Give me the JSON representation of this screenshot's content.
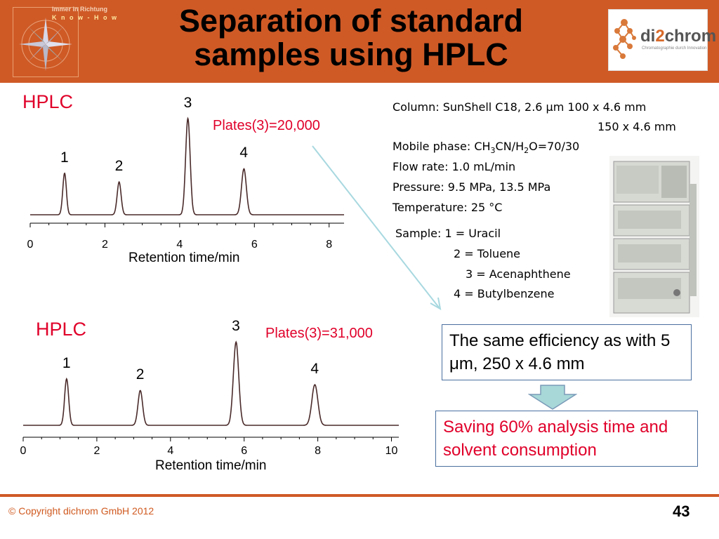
{
  "header": {
    "title_line1": "Separation of standard",
    "title_line2": "samples using HPLC",
    "logo_left_text1": "Immer in Richtung",
    "logo_left_text2": "K n o w - H o w",
    "logo_right_name_a": "di",
    "logo_right_name_b": "2",
    "logo_right_name_c": "chrom",
    "logo_right_tag": "Chromatographie durch Innovation"
  },
  "chart_data": [
    {
      "type": "line",
      "label": "HPLC",
      "plates": "Plates(3)=20,000",
      "xlabel": "Retention time/min",
      "xlim": [
        0,
        8.4
      ],
      "xticks": [
        "0",
        "2",
        "4",
        "6",
        "8"
      ],
      "peaks": [
        {
          "label": "1",
          "x": 0.92,
          "height": 0.38
        },
        {
          "label": "2",
          "x": 2.38,
          "height": 0.3
        },
        {
          "label": "3",
          "x": 4.22,
          "height": 0.88
        },
        {
          "label": "4",
          "x": 5.72,
          "height": 0.42
        }
      ]
    },
    {
      "type": "line",
      "label": "HPLC",
      "plates": "Plates(3)=31,000",
      "xlabel": "Retention time/min",
      "xlim": [
        0,
        10.2
      ],
      "xticks": [
        "0",
        "2",
        "4",
        "6",
        "8",
        "10"
      ],
      "peaks": [
        {
          "label": "1",
          "x": 1.18,
          "height": 0.48
        },
        {
          "label": "2",
          "x": 3.18,
          "height": 0.36
        },
        {
          "label": "3",
          "x": 5.78,
          "height": 0.86
        },
        {
          "label": "4",
          "x": 7.92,
          "height": 0.42
        }
      ]
    }
  ],
  "conditions": {
    "column": "Column: SunShell C18, 2.6 μm  100 x 4.6 mm",
    "column2": "150 x 4.6 mm",
    "mobile_a": "Mobile phase: CH",
    "mobile_s1": "3",
    "mobile_b": "CN/H",
    "mobile_s2": "2",
    "mobile_c": "O=70/30",
    "flow": "Flow rate: 1.0 mL/min",
    "pressure": "Pressure: 9.5 MPa, 13.5 MPa",
    "temperature": "Temperature: 25 °C",
    "sample1": "Sample: 1 = Uracil",
    "sample2": "2 = Toluene",
    "sample3": "3 = Acenaphthene",
    "sample4": "4 = Butylbenzene"
  },
  "efficiency_box": "The same efficiency as with 5 μm, 250 x 4.6 mm",
  "saving_box": "Saving 60% analysis time and solvent consumption",
  "footer": {
    "copyright": "© Copyright dichrom GmbH 2012",
    "page_number": "43"
  },
  "colors": {
    "header": "#cf5a26",
    "accent_red": "#e0002a",
    "trace": "#4a2a2a",
    "arrow": "#a8d8e0"
  }
}
